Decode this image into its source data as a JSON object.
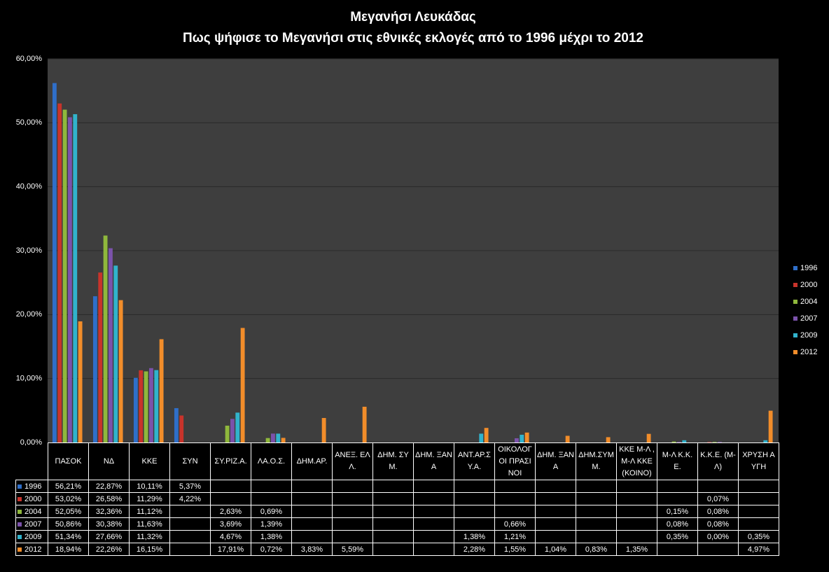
{
  "chart_data": {
    "type": "bar",
    "title": "Μεγανήσι Λευκάδας",
    "subtitle": "Πως ψήφισε το Μεγανήσι στις εθνικές εκλογές από το 1996 μέχρι το 2012",
    "categories": [
      "ΠΑΣΟΚ",
      "ΝΔ",
      "ΚΚΕ",
      "ΣΥΝ",
      "ΣΥ.ΡΙΖ.Α.",
      "ΛΑ.Ο.Σ.",
      "ΔΗΜ.ΑΡ.",
      "ΑΝΕΞ. ΕΛΛ.",
      "ΔΗΜ. ΣΥΜ.",
      "ΔΗΜ. ΞΑΝΑ",
      "ΑΝΤ.ΑΡ.ΣΥ.Α.",
      "ΟΙΚΟΛΟΓΟΙ ΠΡΑΣΙΝΟΙ",
      "ΔΗΜ. ΞΑΝΑ",
      "ΔΗΜ.ΣΥΜΜ.",
      "ΚΚΕ Μ-Λ ,Μ-Λ ΚΚΕ (ΚΟΙΝΟ)",
      "Μ-Λ Κ.Κ.Ε.",
      "Κ.Κ.Ε. (Μ-Λ)",
      "ΧΡΥΣΗ ΑΥΓΗ"
    ],
    "series": [
      {
        "name": "1996",
        "color": "#2f6fc9",
        "values": [
          56.21,
          22.87,
          10.11,
          5.37,
          null,
          null,
          null,
          null,
          null,
          null,
          null,
          null,
          null,
          null,
          null,
          null,
          null,
          null
        ],
        "value_labels": [
          "56,21%",
          "22,87%",
          "10,11%",
          "5,37%",
          null,
          null,
          null,
          null,
          null,
          null,
          null,
          null,
          null,
          null,
          null,
          null,
          null,
          null
        ]
      },
      {
        "name": "2000",
        "color": "#c8332b",
        "values": [
          53.02,
          26.58,
          11.29,
          4.22,
          null,
          null,
          null,
          null,
          null,
          null,
          null,
          null,
          null,
          null,
          null,
          null,
          0.07,
          null
        ],
        "value_labels": [
          "53,02%",
          "26,58%",
          "11,29%",
          "4,22%",
          null,
          null,
          null,
          null,
          null,
          null,
          null,
          null,
          null,
          null,
          null,
          null,
          "0,07%",
          null
        ]
      },
      {
        "name": "2004",
        "color": "#8fb83c",
        "values": [
          52.05,
          32.36,
          11.12,
          null,
          2.63,
          0.69,
          null,
          null,
          null,
          null,
          null,
          null,
          null,
          null,
          null,
          0.15,
          0.08,
          null
        ],
        "value_labels": [
          "52,05%",
          "32,36%",
          "11,12%",
          null,
          "2,63%",
          "0,69%",
          null,
          null,
          null,
          null,
          null,
          null,
          null,
          null,
          null,
          "0,15%",
          "0,08%",
          null
        ]
      },
      {
        "name": "2007",
        "color": "#7b52ab",
        "values": [
          50.86,
          30.38,
          11.63,
          null,
          3.69,
          1.39,
          null,
          null,
          null,
          null,
          null,
          0.66,
          null,
          null,
          null,
          0.08,
          0.08,
          null
        ],
        "value_labels": [
          "50,86%",
          "30,38%",
          "11,63%",
          null,
          "3,69%",
          "1,39%",
          null,
          null,
          null,
          null,
          null,
          "0,66%",
          null,
          null,
          null,
          "0,08%",
          "0,08%",
          null
        ]
      },
      {
        "name": "2009",
        "color": "#31b3cc",
        "values": [
          51.34,
          27.66,
          11.32,
          null,
          4.67,
          1.38,
          null,
          null,
          null,
          null,
          1.38,
          1.21,
          null,
          null,
          null,
          0.35,
          0.0,
          0.35
        ],
        "value_labels": [
          "51,34%",
          "27,66%",
          "11,32%",
          null,
          "4,67%",
          "1,38%",
          null,
          null,
          null,
          null,
          "1,38%",
          "1,21%",
          null,
          null,
          null,
          "0,35%",
          "0,00%",
          "0,35%"
        ]
      },
      {
        "name": "2012",
        "color": "#f28d2a",
        "values": [
          18.94,
          22.26,
          16.15,
          null,
          17.91,
          0.72,
          3.83,
          5.59,
          null,
          null,
          2.28,
          1.55,
          1.04,
          0.83,
          1.35,
          null,
          null,
          4.97
        ],
        "value_labels": [
          "18,94%",
          "22,26%",
          "16,15%",
          null,
          "17,91%",
          "0,72%",
          "3,83%",
          "5,59%",
          null,
          null,
          "2,28%",
          "1,55%",
          "1,04%",
          "0,83%",
          "1,35%",
          null,
          null,
          "4,97%"
        ]
      }
    ],
    "ylim": [
      0,
      60
    ],
    "yticks": [
      {
        "value": 0,
        "label": "0,00%"
      },
      {
        "value": 10,
        "label": "10,00%"
      },
      {
        "value": 20,
        "label": "20,00%"
      },
      {
        "value": 30,
        "label": "30,00%"
      },
      {
        "value": 40,
        "label": "40,00%"
      },
      {
        "value": 50,
        "label": "50,00%"
      },
      {
        "value": 60,
        "label": "60,00%"
      }
    ],
    "grid": true,
    "legend": "right"
  }
}
